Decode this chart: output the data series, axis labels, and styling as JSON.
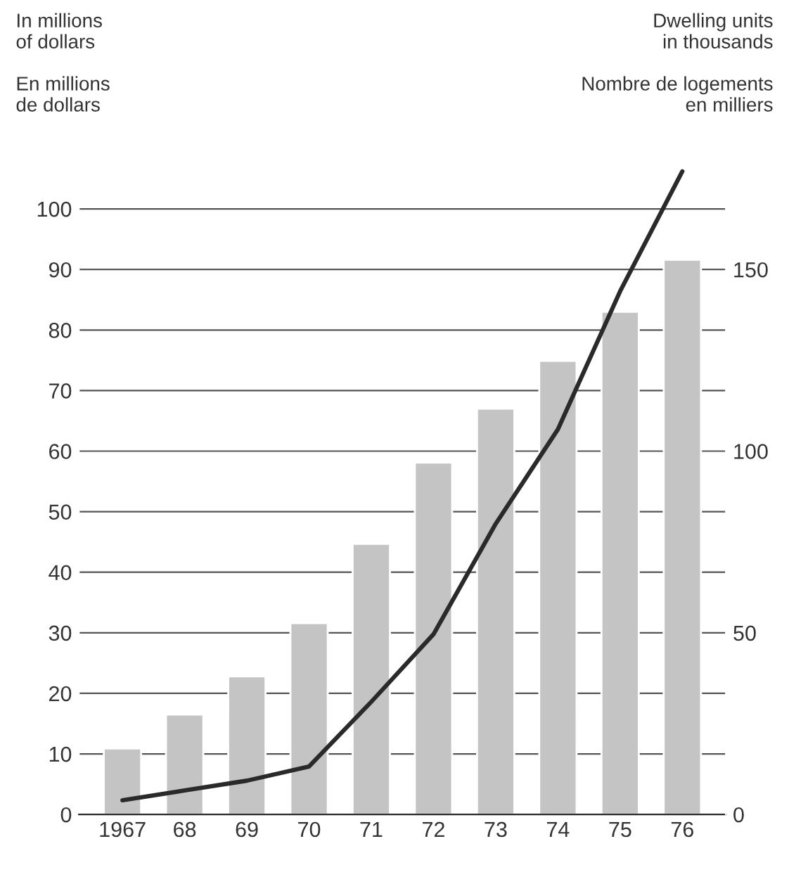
{
  "chart_data": {
    "type": "bar",
    "ylabel": "In millions\nof dollars\n\nEn millions\nde dollars",
    "y2label": "Dwelling units\nin thousands\n\nNombre de logements\nen milliers",
    "categories": [
      "1967",
      "68",
      "69",
      "70",
      "71",
      "72",
      "73",
      "74",
      "75",
      "76"
    ],
    "series": [
      {
        "color": "#c4c4c4",
        "values": [
          10.9,
          16.5,
          22.8,
          31.6,
          44.7,
          58.1,
          67,
          74.9,
          83,
          91.6
        ]
      },
      {
        "type": "line",
        "axis": "y2",
        "color": "#2a2a2a",
        "values": [
          3.9,
          6.6,
          9.3,
          13.2,
          31,
          49.6,
          80,
          106,
          144,
          177
        ]
      }
    ],
    "ylim": [
      0,
      108
    ],
    "yticks": [
      0,
      10,
      20,
      30,
      40,
      50,
      60,
      70,
      80,
      90,
      100
    ],
    "y2lim": [
      0,
      180
    ],
    "y2ticks": [
      0,
      50,
      100,
      150
    ],
    "grid": "y",
    "legend": false,
    "marker": "none",
    "line_style": "solid"
  }
}
